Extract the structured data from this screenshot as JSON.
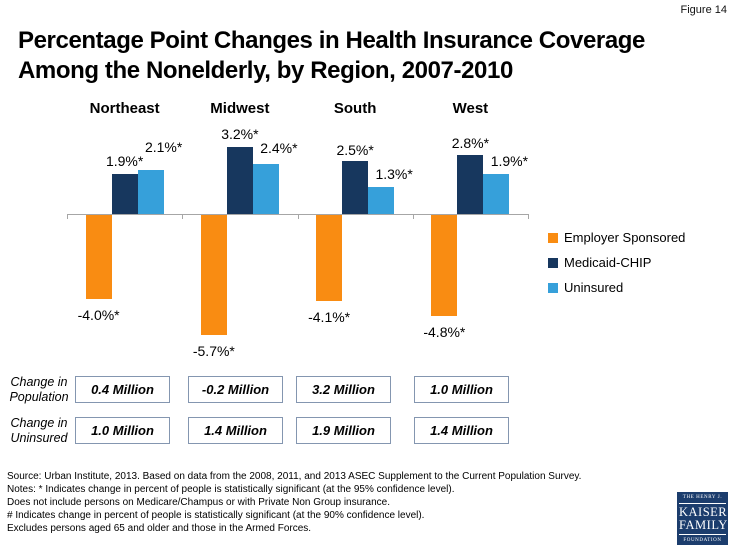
{
  "figure_label": "Figure 14",
  "title": "Percentage Point Changes in Health Insurance Coverage Among the Nonelderly, by Region, 2007-2010",
  "chart_data": {
    "type": "bar",
    "categories": [
      "Northeast",
      "Midwest",
      "South",
      "West"
    ],
    "series": [
      {
        "name": "Employer Sponsored",
        "color": "#f98c12",
        "values": [
          -4.0,
          -5.7,
          -4.1,
          -4.8
        ],
        "labels": [
          "-4.0%*",
          "-5.7%*",
          "-4.1%*",
          "-4.8%*"
        ]
      },
      {
        "name": "Medicaid-CHIP",
        "color": "#17375e",
        "values": [
          1.9,
          3.2,
          2.5,
          2.8
        ],
        "labels": [
          "1.9%*",
          "3.2%*",
          "2.5%*",
          "2.8%*"
        ]
      },
      {
        "name": "Uninsured",
        "color": "#36a0da",
        "values": [
          2.1,
          2.4,
          1.3,
          1.9
        ],
        "labels": [
          "2.1%*",
          "2.4%*",
          "1.3%*",
          "1.9%*"
        ]
      }
    ],
    "ylim": [
      -6.5,
      4
    ],
    "ylabel": "",
    "xlabel": "",
    "grid": false,
    "legend_position": "right",
    "annotation_tables": [
      {
        "label": "Change in Population",
        "values": [
          "0.4 Million",
          "-0.2 Million",
          "3.2 Million",
          "1.0 Million"
        ]
      },
      {
        "label": "Change in Uninsured",
        "values": [
          "1.0 Million",
          "1.4 Million",
          "1.9 Million",
          "1.4 Million"
        ]
      }
    ]
  },
  "footnotes": [
    "Source: Urban Institute, 2013. Based on data from the 2008, 2011, and 2013 ASEC Supplement to the Current Population Survey.",
    "Notes: * Indicates change in percent of people is statistically significant (at the 95% confidence level).",
    "Does not include persons on Medicare/Champus or with Private Non Group insurance.",
    "# Indicates change in percent of people is statistically significant (at the 90% confidence level).",
    "Excludes persons aged 65 and older and those in the Armed Forces."
  ],
  "logo": {
    "line1": "THE HENRY J.",
    "line2": "KAISER",
    "line3": "FAMILY",
    "line4": "FOUNDATION"
  },
  "colors": {
    "employer_sponsored": "#f98c12",
    "medicaid_chip": "#17375e",
    "uninsured": "#36a0da",
    "axis": "#a6a6a6",
    "box_border": "#8496b0",
    "logo_bg": "#1c3d6d"
  }
}
